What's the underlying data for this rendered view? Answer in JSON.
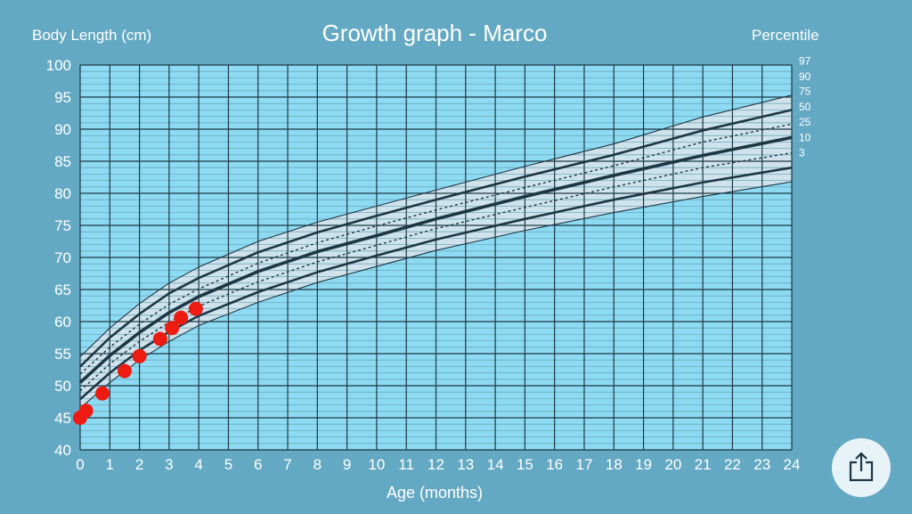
{
  "header": {
    "title": "Growth graph - Marco",
    "ylabel": "Body Length (cm)",
    "percentile_title": "Percentile",
    "xlabel": "Age (months)"
  },
  "share_button": {
    "icon": "share-icon"
  },
  "colors": {
    "background": "#64a9c3",
    "plot_fill": "#8ddbf2",
    "band_fill": "#d6e4ec",
    "grid": "#1d3745",
    "curve": "#1d3745",
    "measurement": "#ee1b12"
  },
  "chart_data": {
    "type": "line",
    "title": "Growth graph - Marco",
    "xlabel": "Age (months)",
    "ylabel": "Body Length (cm)",
    "xlim": [
      0,
      24
    ],
    "ylim": [
      40,
      100
    ],
    "x_ticks": [
      0,
      1,
      2,
      3,
      4,
      5,
      6,
      7,
      8,
      9,
      10,
      11,
      12,
      13,
      14,
      15,
      16,
      17,
      18,
      19,
      20,
      21,
      22,
      23,
      24
    ],
    "y_ticks": [
      40,
      45,
      50,
      55,
      60,
      65,
      70,
      75,
      80,
      85,
      90,
      95,
      100
    ],
    "grid": true,
    "legend_title": "Percentile",
    "legend_placement": "right",
    "percentile_curves": [
      {
        "name": "97",
        "style": "thin",
        "x": [
          0,
          1,
          2,
          3,
          4,
          6,
          8,
          10,
          12,
          15,
          18,
          21,
          24
        ],
        "y": [
          54.5,
          59.0,
          62.8,
          66.0,
          68.5,
          72.5,
          75.5,
          78.0,
          80.5,
          84.2,
          87.7,
          91.9,
          95.3
        ]
      },
      {
        "name": "90",
        "style": "bold",
        "x": [
          0,
          1,
          2,
          3,
          4,
          6,
          8,
          10,
          12,
          15,
          18,
          21,
          24
        ],
        "y": [
          53.0,
          57.5,
          61.2,
          64.4,
          66.8,
          70.8,
          73.9,
          76.5,
          79.0,
          82.6,
          86.0,
          89.8,
          93.0
        ]
      },
      {
        "name": "75",
        "style": "dotted",
        "x": [
          0,
          1,
          2,
          3,
          4,
          6,
          8,
          10,
          12,
          15,
          18,
          21,
          24
        ],
        "y": [
          51.8,
          56.0,
          59.6,
          62.7,
          65.1,
          69.1,
          72.3,
          74.9,
          77.4,
          80.9,
          84.3,
          88.0,
          90.8
        ]
      },
      {
        "name": "50",
        "style": "heavy",
        "x": [
          0,
          1,
          2,
          3,
          4,
          6,
          8,
          10,
          12,
          15,
          18,
          21,
          24
        ],
        "y": [
          50.5,
          54.7,
          58.3,
          61.4,
          63.9,
          67.8,
          70.9,
          73.4,
          76.0,
          79.5,
          82.8,
          85.9,
          88.7
        ]
      },
      {
        "name": "25",
        "style": "dotted",
        "x": [
          0,
          1,
          2,
          3,
          4,
          6,
          8,
          10,
          12,
          15,
          18,
          21,
          24
        ],
        "y": [
          49.2,
          53.4,
          56.9,
          59.9,
          62.4,
          66.2,
          69.3,
          71.9,
          74.5,
          77.8,
          81.0,
          84.0,
          86.3
        ]
      },
      {
        "name": "10",
        "style": "bold",
        "x": [
          0,
          1,
          2,
          3,
          4,
          6,
          8,
          10,
          12,
          15,
          18,
          21,
          24
        ],
        "y": [
          47.9,
          52.0,
          55.5,
          58.4,
          60.9,
          64.6,
          67.7,
          70.3,
          72.8,
          76.0,
          79.0,
          81.7,
          84.0
        ]
      },
      {
        "name": "3",
        "style": "thin",
        "x": [
          0,
          1,
          2,
          3,
          4,
          6,
          8,
          10,
          12,
          15,
          18,
          21,
          24
        ],
        "y": [
          46.5,
          50.5,
          54.0,
          56.9,
          59.4,
          63.0,
          66.1,
          68.6,
          71.1,
          74.2,
          77.0,
          79.5,
          81.8
        ]
      }
    ],
    "measurements": {
      "x": [
        0.0,
        0.2,
        0.75,
        1.5,
        2.0,
        2.7,
        3.1,
        3.4,
        3.9
      ],
      "y": [
        45.0,
        46.1,
        48.8,
        52.3,
        54.6,
        57.3,
        59.0,
        60.6,
        62.0
      ]
    }
  }
}
